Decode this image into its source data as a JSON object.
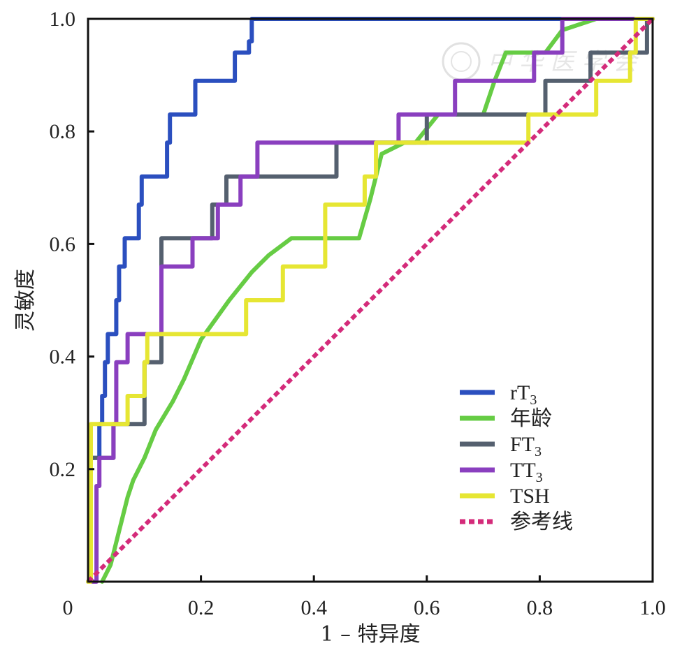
{
  "chart_data": {
    "type": "line",
    "xlabel": "1 – 特异度",
    "ylabel": "灵敏度",
    "xlim": [
      0,
      1
    ],
    "ylim": [
      0,
      1
    ],
    "x_ticks": [
      "0",
      "0.2",
      "0.4",
      "0.6",
      "0.8",
      "1.0"
    ],
    "y_ticks": [
      "0.2",
      "0.4",
      "0.6",
      "0.8",
      "1.0"
    ],
    "grid": false,
    "legend_position": "bottom-right",
    "series": [
      {
        "name": "rT",
        "sub": "3",
        "color": "#2b4fbf",
        "step": true,
        "points": [
          [
            0,
            0
          ],
          [
            0.005,
            0
          ],
          [
            0.005,
            0.22
          ],
          [
            0.02,
            0.22
          ],
          [
            0.02,
            0.28
          ],
          [
            0.025,
            0.28
          ],
          [
            0.025,
            0.33
          ],
          [
            0.03,
            0.33
          ],
          [
            0.03,
            0.39
          ],
          [
            0.035,
            0.39
          ],
          [
            0.035,
            0.44
          ],
          [
            0.05,
            0.44
          ],
          [
            0.05,
            0.5
          ],
          [
            0.055,
            0.5
          ],
          [
            0.055,
            0.56
          ],
          [
            0.065,
            0.56
          ],
          [
            0.065,
            0.61
          ],
          [
            0.09,
            0.61
          ],
          [
            0.09,
            0.67
          ],
          [
            0.095,
            0.67
          ],
          [
            0.095,
            0.72
          ],
          [
            0.14,
            0.72
          ],
          [
            0.14,
            0.78
          ],
          [
            0.145,
            0.78
          ],
          [
            0.145,
            0.83
          ],
          [
            0.19,
            0.83
          ],
          [
            0.19,
            0.89
          ],
          [
            0.26,
            0.89
          ],
          [
            0.26,
            0.94
          ],
          [
            0.285,
            0.94
          ],
          [
            0.285,
            0.96
          ],
          [
            0.29,
            0.96
          ],
          [
            0.29,
            1.0
          ],
          [
            1.0,
            1.0
          ]
        ]
      },
      {
        "name": "年龄",
        "color": "#66cc44",
        "step": false,
        "points": [
          [
            0.025,
            0
          ],
          [
            0.04,
            0.03
          ],
          [
            0.055,
            0.09
          ],
          [
            0.07,
            0.15
          ],
          [
            0.08,
            0.18
          ],
          [
            0.1,
            0.22
          ],
          [
            0.12,
            0.27
          ],
          [
            0.15,
            0.32
          ],
          [
            0.17,
            0.36
          ],
          [
            0.2,
            0.43
          ],
          [
            0.25,
            0.5
          ],
          [
            0.29,
            0.55
          ],
          [
            0.32,
            0.58
          ],
          [
            0.36,
            0.61
          ],
          [
            0.48,
            0.61
          ],
          [
            0.5,
            0.68
          ],
          [
            0.52,
            0.76
          ],
          [
            0.56,
            0.78
          ],
          [
            0.58,
            0.78
          ],
          [
            0.62,
            0.83
          ],
          [
            0.7,
            0.83
          ],
          [
            0.72,
            0.89
          ],
          [
            0.74,
            0.94
          ],
          [
            0.81,
            0.94
          ],
          [
            0.84,
            0.98
          ],
          [
            0.9,
            1.0
          ],
          [
            1.0,
            1.0
          ]
        ]
      },
      {
        "name": "FT",
        "sub": "3",
        "color": "#55606f",
        "step": true,
        "points": [
          [
            0.005,
            0
          ],
          [
            0.005,
            0.22
          ],
          [
            0.045,
            0.22
          ],
          [
            0.045,
            0.28
          ],
          [
            0.1,
            0.28
          ],
          [
            0.1,
            0.39
          ],
          [
            0.13,
            0.39
          ],
          [
            0.13,
            0.61
          ],
          [
            0.22,
            0.61
          ],
          [
            0.22,
            0.67
          ],
          [
            0.245,
            0.67
          ],
          [
            0.245,
            0.72
          ],
          [
            0.44,
            0.72
          ],
          [
            0.44,
            0.78
          ],
          [
            0.6,
            0.78
          ],
          [
            0.6,
            0.83
          ],
          [
            0.81,
            0.83
          ],
          [
            0.81,
            0.89
          ],
          [
            0.89,
            0.89
          ],
          [
            0.89,
            0.94
          ],
          [
            0.99,
            0.94
          ],
          [
            0.99,
            1.0
          ],
          [
            1.0,
            1.0
          ]
        ]
      },
      {
        "name": "TT",
        "sub": "3",
        "color": "#8a3fbf",
        "step": true,
        "points": [
          [
            0,
            0
          ],
          [
            0.015,
            0
          ],
          [
            0.015,
            0.17
          ],
          [
            0.02,
            0.17
          ],
          [
            0.02,
            0.22
          ],
          [
            0.045,
            0.22
          ],
          [
            0.045,
            0.28
          ],
          [
            0.05,
            0.28
          ],
          [
            0.05,
            0.39
          ],
          [
            0.07,
            0.39
          ],
          [
            0.07,
            0.44
          ],
          [
            0.13,
            0.44
          ],
          [
            0.13,
            0.56
          ],
          [
            0.185,
            0.56
          ],
          [
            0.185,
            0.61
          ],
          [
            0.23,
            0.61
          ],
          [
            0.23,
            0.67
          ],
          [
            0.27,
            0.67
          ],
          [
            0.27,
            0.72
          ],
          [
            0.3,
            0.72
          ],
          [
            0.3,
            0.78
          ],
          [
            0.55,
            0.78
          ],
          [
            0.55,
            0.83
          ],
          [
            0.65,
            0.83
          ],
          [
            0.65,
            0.89
          ],
          [
            0.79,
            0.89
          ],
          [
            0.79,
            0.94
          ],
          [
            0.84,
            0.94
          ],
          [
            0.84,
            1.0
          ],
          [
            1.0,
            1.0
          ]
        ]
      },
      {
        "name": "TSH",
        "color": "#e6e633",
        "step": true,
        "points": [
          [
            0,
            0
          ],
          [
            0.005,
            0
          ],
          [
            0.005,
            0.28
          ],
          [
            0.07,
            0.28
          ],
          [
            0.07,
            0.33
          ],
          [
            0.1,
            0.33
          ],
          [
            0.1,
            0.39
          ],
          [
            0.105,
            0.39
          ],
          [
            0.105,
            0.44
          ],
          [
            0.28,
            0.44
          ],
          [
            0.28,
            0.5
          ],
          [
            0.345,
            0.5
          ],
          [
            0.345,
            0.56
          ],
          [
            0.42,
            0.56
          ],
          [
            0.42,
            0.67
          ],
          [
            0.49,
            0.67
          ],
          [
            0.49,
            0.72
          ],
          [
            0.51,
            0.72
          ],
          [
            0.51,
            0.78
          ],
          [
            0.78,
            0.78
          ],
          [
            0.78,
            0.83
          ],
          [
            0.9,
            0.83
          ],
          [
            0.9,
            0.89
          ],
          [
            0.96,
            0.89
          ],
          [
            0.96,
            0.94
          ],
          [
            0.97,
            0.94
          ],
          [
            0.97,
            1.0
          ],
          [
            1.0,
            1.0
          ]
        ]
      },
      {
        "name": "参考线",
        "color": "#d42b7a",
        "dashed": true,
        "step": false,
        "points": [
          [
            0,
            0
          ],
          [
            1,
            1
          ]
        ]
      }
    ]
  },
  "watermark": {
    "text": "中 华 医 学 会"
  }
}
